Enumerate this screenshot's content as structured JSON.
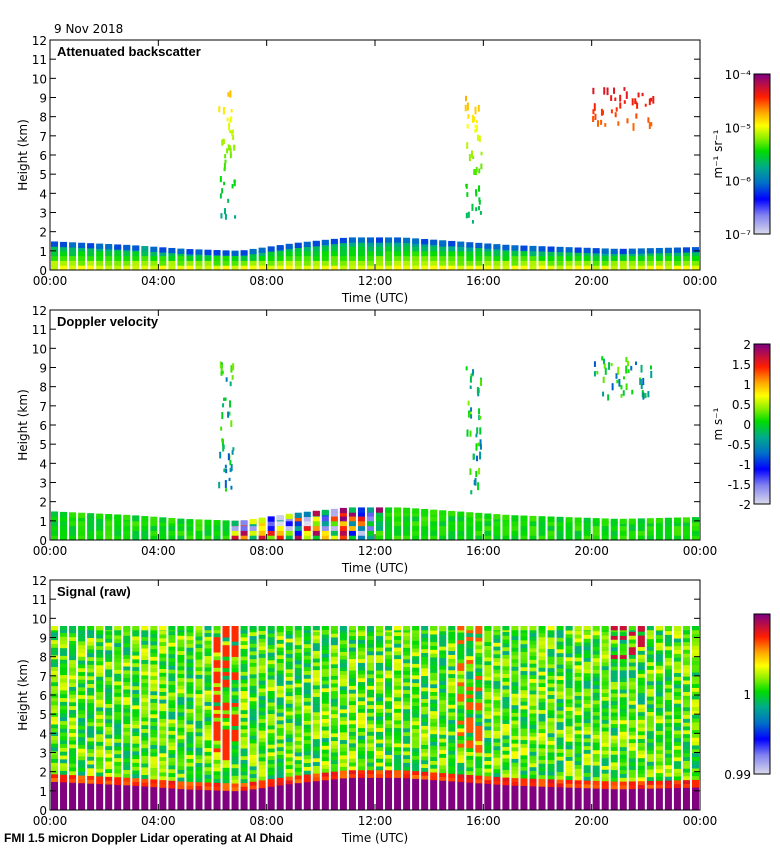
{
  "date_label": "9 Nov 2018",
  "footer": "FMI 1.5 micron Doppler Lidar operating at Al Dhaid",
  "chart_data": [
    {
      "type": "heatmap",
      "title": "Attenuated backscatter",
      "xlabel": "Time (UTC)",
      "ylabel": "Height (km)",
      "xticks": [
        "00:00",
        "04:00",
        "08:00",
        "12:00",
        "16:00",
        "20:00",
        "00:00"
      ],
      "xlim_hours": [
        0,
        24
      ],
      "yticks": [
        "0",
        "1",
        "2",
        "3",
        "4",
        "5",
        "6",
        "7",
        "8",
        "9",
        "10",
        "11",
        "12"
      ],
      "ylim_km": [
        0,
        12
      ],
      "colorbar": {
        "label": "m⁻¹ sr⁻¹",
        "scale": "log",
        "ticks": [
          "10⁻⁷",
          "10⁻⁶",
          "10⁻⁵",
          "10⁻⁴"
        ],
        "range": [
          1e-07,
          0.0001
        ]
      },
      "boundary_layer_top_km": [
        [
          0,
          1.5
        ],
        [
          3,
          1.3
        ],
        [
          5,
          1.1
        ],
        [
          7,
          1.0
        ],
        [
          9,
          1.4
        ],
        [
          11,
          1.7
        ],
        [
          13,
          1.7
        ],
        [
          15,
          1.5
        ],
        [
          17,
          1.3
        ],
        [
          19,
          1.2
        ],
        [
          21,
          1.1
        ],
        [
          24,
          1.2
        ]
      ],
      "features": [
        {
          "t": [
            6.2,
            6.8
          ],
          "h": [
            2.6,
            9.5
          ],
          "level": 0.55,
          "desc": "thin cloud streaks"
        },
        {
          "t": [
            15.3,
            15.9
          ],
          "h": [
            2.6,
            9.2
          ],
          "level": 0.6,
          "desc": "thin cloud streaks"
        },
        {
          "t": [
            20.0,
            22.3
          ],
          "h": [
            7.6,
            9.6
          ],
          "level": 0.85,
          "desc": "high cloud"
        }
      ]
    },
    {
      "type": "heatmap",
      "title": "Doppler velocity",
      "xlabel": "Time (UTC)",
      "ylabel": "Height (km)",
      "xticks": [
        "00:00",
        "04:00",
        "08:00",
        "12:00",
        "16:00",
        "20:00",
        "00:00"
      ],
      "xlim_hours": [
        0,
        24
      ],
      "yticks": [
        "0",
        "1",
        "2",
        "3",
        "4",
        "5",
        "6",
        "7",
        "8",
        "9",
        "10",
        "11",
        "12"
      ],
      "ylim_km": [
        0,
        12
      ],
      "colorbar": {
        "label": "m s⁻¹",
        "scale": "linear",
        "ticks": [
          "-2",
          "-1.5",
          "-1",
          "-0.5",
          "0",
          "0.5",
          "1",
          "1.5",
          "2"
        ],
        "range": [
          -2,
          2
        ]
      },
      "convective_period_hours": [
        6.5,
        12.5
      ]
    },
    {
      "type": "heatmap",
      "title": "Signal (raw)",
      "xlabel": "Time (UTC)",
      "ylabel": "Height (km)",
      "xticks": [
        "00:00",
        "04:00",
        "08:00",
        "12:00",
        "16:00",
        "20:00",
        "00:00"
      ],
      "xlim_hours": [
        0,
        24
      ],
      "yticks": [
        "0",
        "1",
        "2",
        "3",
        "4",
        "5",
        "6",
        "7",
        "8",
        "9",
        "10",
        "11",
        "12"
      ],
      "ylim_km": [
        0,
        12
      ],
      "data_top_km": 9.6,
      "colorbar": {
        "label": "",
        "scale": "linear",
        "ticks": [
          "0.99",
          "1"
        ],
        "range": [
          0.99,
          1.01
        ]
      }
    }
  ]
}
